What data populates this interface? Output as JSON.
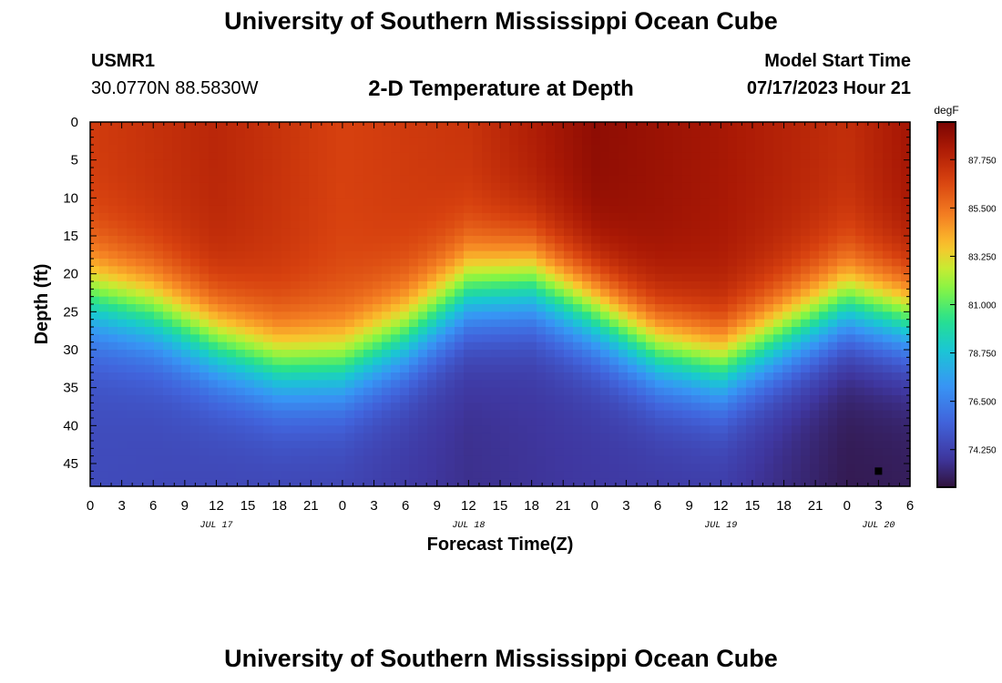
{
  "header": {
    "title": "University of Southern Mississippi Ocean Cube",
    "station": "USMR1",
    "coords": "30.0770N  88.5830W",
    "subtitle": "2-D Temperature at Depth",
    "model_label": "Model Start Time",
    "model_time": "07/17/2023 Hour 21"
  },
  "footer": {
    "title": "University of Southern Mississippi Ocean Cube"
  },
  "chart_data": {
    "type": "heatmap",
    "title": "2-D Temperature at Depth",
    "xlabel": "Forecast Time(Z)",
    "ylabel": "Depth (ft)",
    "x_tick_labels": [
      "0",
      "3",
      "6",
      "9",
      "12",
      "15",
      "18",
      "21",
      "0",
      "3",
      "6",
      "9",
      "12",
      "15",
      "18",
      "21",
      "0",
      "3",
      "6",
      "9",
      "12",
      "15",
      "18",
      "21",
      "0",
      "3",
      "6"
    ],
    "date_labels": [
      {
        "label": "JUL 17",
        "hour": 12
      },
      {
        "label": "JUL 18",
        "hour": 36
      },
      {
        "label": "JUL 19",
        "hour": 60
      },
      {
        "label": "JUL 20",
        "hour": 75
      }
    ],
    "xlim_hours": [
      0,
      78
    ],
    "y_ticks": [
      0,
      5,
      10,
      15,
      20,
      25,
      30,
      35,
      40,
      45
    ],
    "ylim_ft": [
      0,
      48
    ],
    "colorbar": {
      "unit": "degF",
      "ticks": [
        "74.250",
        "76.500",
        "78.750",
        "81.000",
        "83.250",
        "85.500",
        "87.750"
      ],
      "range": [
        72.5,
        89.5
      ]
    },
    "thermocline_depth_ft": [
      {
        "hour": 0,
        "depth": 23
      },
      {
        "hour": 6,
        "depth": 25
      },
      {
        "hour": 12,
        "depth": 29
      },
      {
        "hour": 18,
        "depth": 32
      },
      {
        "hour": 24,
        "depth": 32
      },
      {
        "hour": 30,
        "depth": 28
      },
      {
        "hour": 36,
        "depth": 22
      },
      {
        "hour": 42,
        "depth": 21
      },
      {
        "hour": 48,
        "depth": 25
      },
      {
        "hour": 54,
        "depth": 30
      },
      {
        "hour": 60,
        "depth": 32
      },
      {
        "hour": 66,
        "depth": 28
      },
      {
        "hour": 72,
        "depth": 24
      },
      {
        "hour": 78,
        "depth": 26
      }
    ],
    "surface_temp_F": [
      {
        "hour": 0,
        "temp": 87.0
      },
      {
        "hour": 12,
        "temp": 87.8
      },
      {
        "hour": 24,
        "temp": 86.8
      },
      {
        "hour": 36,
        "temp": 87.3
      },
      {
        "hour": 48,
        "temp": 89.0
      },
      {
        "hour": 60,
        "temp": 88.4
      },
      {
        "hour": 72,
        "temp": 87.5
      },
      {
        "hour": 78,
        "temp": 88.5
      }
    ],
    "bottom_temp_F": [
      {
        "hour": 0,
        "temp": 74.6
      },
      {
        "hour": 24,
        "temp": 74.3
      },
      {
        "hour": 36,
        "temp": 73.6
      },
      {
        "hour": 48,
        "temp": 73.9
      },
      {
        "hour": 60,
        "temp": 74.0
      },
      {
        "hour": 72,
        "temp": 72.8
      },
      {
        "hour": 78,
        "temp": 72.9
      }
    ],
    "marker": {
      "hour": 75,
      "depth_ft": 46
    }
  }
}
